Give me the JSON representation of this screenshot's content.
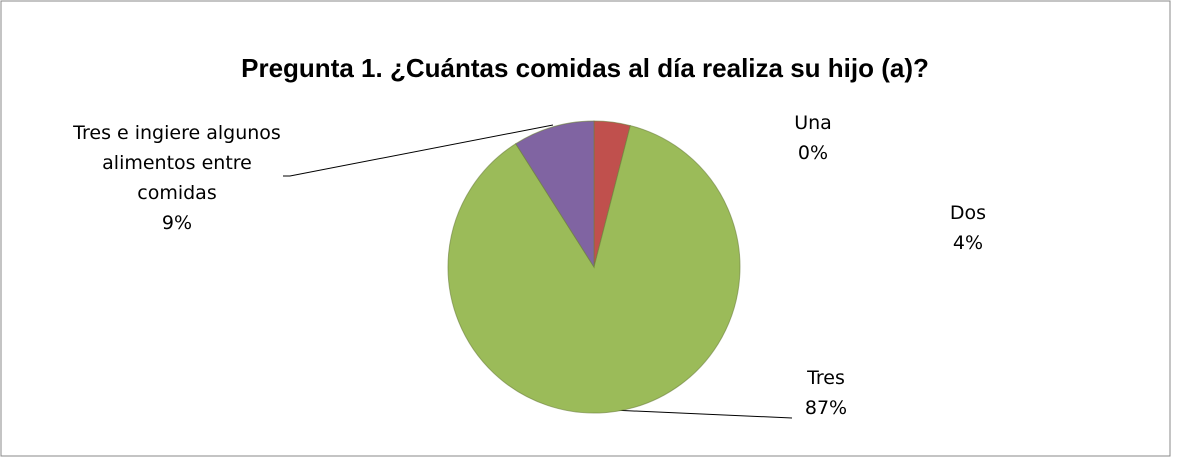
{
  "chart_data": {
    "type": "pie",
    "title": "Pregunta 1. ¿Cuántas comidas al día realiza su hijo (a)?",
    "categories": [
      "Una",
      "Dos",
      "Tres",
      "Tres e ingiere algunos alimentos entre comidas"
    ],
    "values": [
      0,
      4,
      87,
      9
    ],
    "value_labels": [
      "0%",
      "4%",
      "87%",
      "9%"
    ],
    "colors": [
      "#4f81bd",
      "#c0504d",
      "#9bbb59",
      "#8064a2"
    ]
  }
}
